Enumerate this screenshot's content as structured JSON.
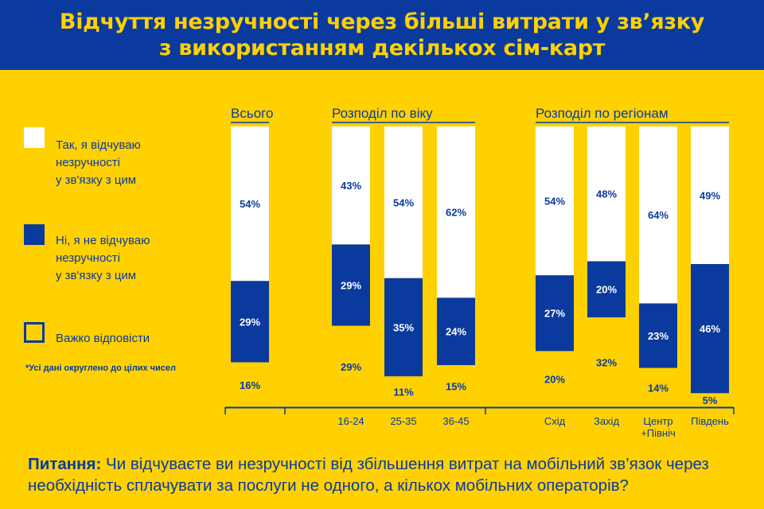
{
  "header": {
    "title_line1": "Відчуття незручності через більші витрати у зв’язку",
    "title_line2": "з використанням декількох сім-карт"
  },
  "legend": [
    {
      "label_line1": "Так, я відчуваю",
      "label_line2": "незручності",
      "label_line3": "у зв'язку з цим",
      "color": "#FFFFFF"
    },
    {
      "label_line1": "Ні, я не відчуваю",
      "label_line2": "незручності",
      "label_line3": "у зв'язку з цим",
      "color": "#0A3A9E"
    },
    {
      "label_line1": "Важко відповісти",
      "color": "#FFD100"
    }
  ],
  "footnote": "*Усі дані округлено до цілих чисел",
  "question": {
    "label": "Питання:",
    "text": "Чи відчуваєте ви незручності від збільшення витрат на мобільний зв’язок через необхідність сплачувати за послуги не одного, а кількох мобільних операторів?"
  },
  "colors": {
    "blue": "#0A3A9E",
    "yellow": "#FFD100",
    "white": "#FFFFFF"
  },
  "chart_data": {
    "type": "bar",
    "stacked": true,
    "groups": [
      {
        "label": "Всього",
        "categories": [
          ""
        ]
      },
      {
        "label": "Розподіл по віку",
        "categories": [
          "16-24",
          "25-35",
          "36-45"
        ]
      },
      {
        "label": "Розподіл по регіонам",
        "categories": [
          "Схід",
          "Захід",
          "Центр +Північ",
          "Південь"
        ]
      }
    ],
    "categories": [
      "",
      "16-24",
      "25-35",
      "36-45",
      "Схід",
      "Захід",
      "Центр +Північ",
      "Південь"
    ],
    "category_lines": [
      [],
      [
        "16-24"
      ],
      [
        "25-35"
      ],
      [
        "36-45"
      ],
      [
        "Схід"
      ],
      [
        "Захід"
      ],
      [
        "Центр",
        "+Північ"
      ],
      [
        "Південь"
      ]
    ],
    "series": [
      {
        "name": "Важко відповісти",
        "color": "#FFD100",
        "values": [
          16,
          29,
          11,
          15,
          20,
          32,
          14,
          5
        ]
      },
      {
        "name": "Ні, я не відчуваю незручності у зв'язку з цим",
        "color": "#0A3A9E",
        "values": [
          29,
          29,
          35,
          24,
          27,
          20,
          23,
          46
        ]
      },
      {
        "name": "Так, я відчуваю незручності у зв'язку з цим",
        "color": "#FFFFFF",
        "values": [
          54,
          43,
          54,
          62,
          54,
          48,
          64,
          49
        ]
      }
    ],
    "unit": "%",
    "ylim": [
      0,
      100
    ]
  }
}
